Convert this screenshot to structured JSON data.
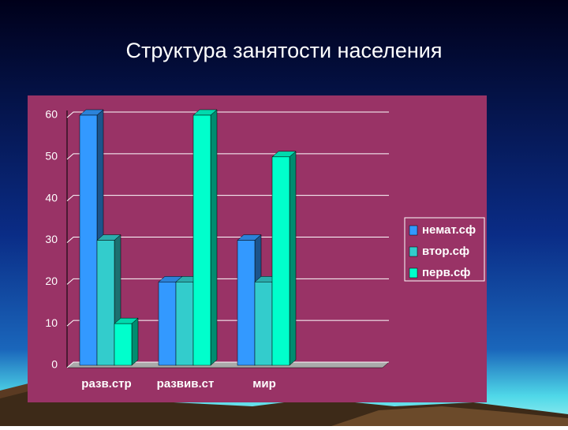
{
  "chart_data": {
    "type": "bar",
    "title": "Структура занятости населения",
    "categories": [
      "разв.стр",
      "развив.ст",
      "мир"
    ],
    "series": [
      {
        "name": "немат.сф",
        "color": "#3399ff",
        "values": [
          60,
          20,
          30
        ]
      },
      {
        "name": "втор.сф",
        "color": "#33cccc",
        "values": [
          30,
          20,
          20
        ]
      },
      {
        "name": "перв.сф",
        "color": "#00ffcc",
        "values": [
          10,
          60,
          50
        ]
      }
    ],
    "ylim": [
      0,
      60
    ],
    "yticks": [
      0,
      10,
      20,
      30,
      40,
      50,
      60
    ],
    "grid": true,
    "legend": "right"
  }
}
